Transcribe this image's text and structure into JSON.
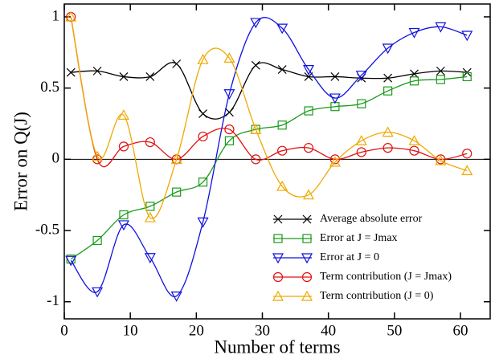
{
  "chart_data": {
    "type": "line",
    "x_label": "Number of terms",
    "y_label": "Error on Q(J)",
    "x": [
      1,
      5,
      9,
      13,
      17,
      21,
      25,
      29,
      33,
      37,
      41,
      45,
      49,
      53,
      57,
      61
    ],
    "xlim": [
      0,
      64.5
    ],
    "xticks": [
      0,
      10,
      20,
      30,
      40,
      50,
      60
    ],
    "ylim": [
      -1.12,
      1.09
    ],
    "yticks": [
      -1,
      -0.5,
      0,
      0.5,
      1
    ],
    "hline": 0,
    "legend": "lower right",
    "series": [
      {
        "name": "Average absolute error",
        "color": "#000000",
        "marker": "x",
        "values": [
          0.61,
          0.62,
          0.58,
          0.58,
          0.67,
          0.32,
          0.33,
          0.66,
          0.63,
          0.58,
          0.58,
          0.57,
          0.57,
          0.6,
          0.62,
          0.61
        ]
      },
      {
        "name": "Error at J = Jmax",
        "color": "#1a9a1a",
        "marker": "square",
        "values": [
          -0.7,
          -0.57,
          -0.39,
          -0.33,
          -0.23,
          -0.16,
          0.13,
          0.21,
          0.24,
          0.34,
          0.37,
          0.39,
          0.48,
          0.55,
          0.56,
          0.58
        ]
      },
      {
        "name": "Error at J = 0",
        "color": "#1010e0",
        "marker": "triangle-down",
        "values": [
          -0.71,
          -0.93,
          -0.46,
          -0.69,
          -0.96,
          -0.44,
          0.46,
          0.96,
          0.92,
          0.63,
          0.43,
          0.59,
          0.78,
          0.89,
          0.93,
          0.87
        ]
      },
      {
        "name": "Term contribution (J = Jmax)",
        "color": "#e01010",
        "marker": "circle",
        "values": [
          1.0,
          0.0,
          0.09,
          0.12,
          0.0,
          0.16,
          0.21,
          0.0,
          0.06,
          0.08,
          0.0,
          0.05,
          0.08,
          0.06,
          0.0,
          0.04
        ]
      },
      {
        "name": "Term contribution (J = 0)",
        "color": "#f0a800",
        "marker": "triangle-up",
        "values": [
          1.0,
          0.02,
          0.31,
          -0.41,
          0.0,
          0.7,
          0.71,
          0.21,
          -0.19,
          -0.25,
          -0.02,
          0.13,
          0.19,
          0.13,
          -0.01,
          -0.08
        ]
      }
    ]
  }
}
